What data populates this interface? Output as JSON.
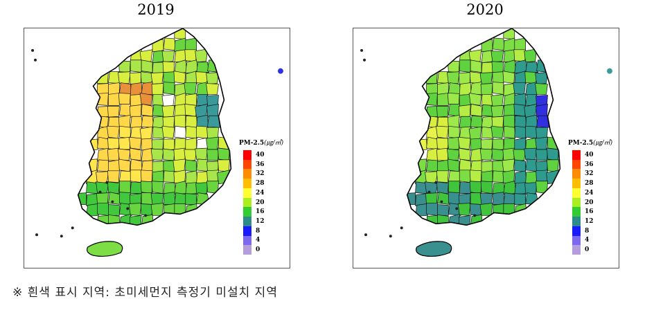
{
  "panels": [
    {
      "title": "2019",
      "legend": {
        "title": "PM-2.5",
        "unit": "(㎍/㎥)",
        "ticks": [
          "40",
          "36",
          "32",
          "28",
          "24",
          "20",
          "16",
          "12",
          "8",
          "4",
          "0"
        ],
        "colors": [
          "#ff0000",
          "#ff4500",
          "#ff8c00",
          "#ffbf00",
          "#ffff33",
          "#aaee22",
          "#33cc33",
          "#2e8b8b",
          "#1a1aff",
          "#7b68ee",
          "#b39ddb"
        ]
      },
      "region_colors": [
        "#ffd84a",
        "#ffe64d",
        "#d8ef3f",
        "#a9e64a",
        "#69d640",
        "#42c83d",
        "#e8913a",
        "#ffffff",
        "#3a9a9a",
        "#2e8a8a"
      ]
    },
    {
      "title": "2020",
      "legend": {
        "title": "PM-2.5",
        "unit": "(㎍/㎥)",
        "ticks": [
          "40",
          "36",
          "32",
          "28",
          "24",
          "20",
          "16",
          "12",
          "8",
          "4",
          "0"
        ],
        "colors": [
          "#ff0000",
          "#ff4500",
          "#ff8c00",
          "#ffbf00",
          "#ffff33",
          "#aaee22",
          "#33cc33",
          "#2e8b8b",
          "#1a1aff",
          "#7b68ee",
          "#b39ddb"
        ]
      },
      "region_colors": [
        "#9de84a",
        "#b6ed45",
        "#7ddd44",
        "#5fd23f",
        "#3fc43c",
        "#2f9b8f",
        "#3a8f8f",
        "#e8f24a",
        "#3030e0",
        "#d9ef40"
      ]
    }
  ],
  "footnote": "※ 흰색 표시 지역: 초미세먼지 측정기 미설치 지역"
}
